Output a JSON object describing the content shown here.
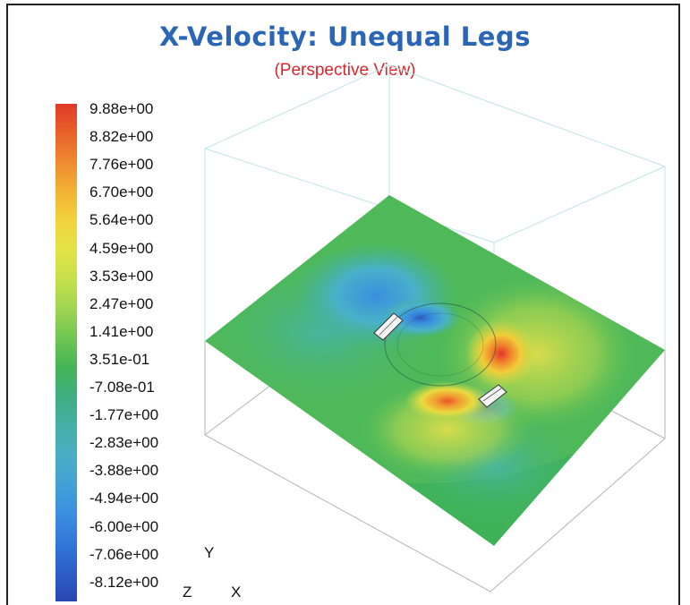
{
  "title": "X-Velocity:  Unequal Legs",
  "subtitle": "(Perspective View)",
  "colorbar": {
    "labels": [
      "9.88e+00",
      "8.82e+00",
      "7.76e+00",
      "6.70e+00",
      "5.64e+00",
      "4.59e+00",
      "3.53e+00",
      "2.47e+00",
      "1.41e+00",
      "3.51e-01",
      "-7.08e-01",
      "-1.77e+00",
      "-2.83e+00",
      "-3.88e+00",
      "-4.94e+00",
      "-6.00e+00",
      "-7.06e+00",
      "-8.12e+00"
    ],
    "colors": [
      "#e03a2a",
      "#e8622a",
      "#ef8a2e",
      "#f2b234",
      "#f1d43a",
      "#e3e347",
      "#c5e04b",
      "#9fd54f",
      "#6fc553",
      "#45b556",
      "#3fae82",
      "#44b0a6",
      "#4aaec4",
      "#43a0d6",
      "#3b8fdf",
      "#3277d9",
      "#2c5fc8",
      "#2a47b0"
    ]
  },
  "axes_triad": {
    "y": "Y",
    "z": "Z",
    "x": "X"
  }
}
